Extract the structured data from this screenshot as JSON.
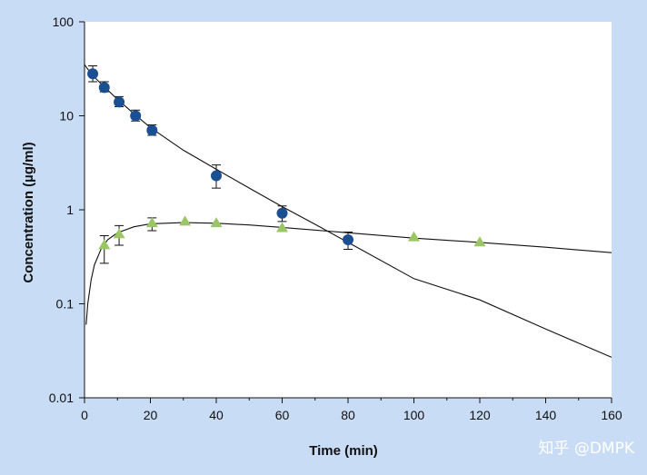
{
  "chart_data": {
    "type": "scatter",
    "xlabel": "Time (min)",
    "ylabel": "Concentration (µg/ml)",
    "xlim": [
      0,
      160
    ],
    "ylim": [
      0.01,
      100
    ],
    "yscale": "log",
    "grid": false,
    "x_ticks": [
      0,
      20,
      40,
      60,
      80,
      100,
      120,
      140,
      160
    ],
    "x_tick_labels": [
      "0",
      "20",
      "40",
      "60",
      "80",
      "100",
      "120",
      "140",
      "160"
    ],
    "y_ticks": [
      0.01,
      0.1,
      1,
      10,
      100
    ],
    "y_tick_labels": [
      "0.01",
      "0.1",
      "1",
      "10",
      "100"
    ],
    "series": [
      {
        "marker": "circle",
        "color": "#1b4f94",
        "x": [
          2.5,
          6,
          10.5,
          15.5,
          20.5,
          40,
          60,
          80
        ],
        "y": [
          28,
          20,
          14,
          10,
          7,
          2.3,
          0.92,
          0.48
        ],
        "err_low": [
          23,
          18,
          12.5,
          8.8,
          6.2,
          1.7,
          0.75,
          0.38
        ],
        "err_high": [
          34,
          23,
          16,
          11.5,
          8,
          3.0,
          1.1,
          0.58
        ]
      },
      {
        "marker": "triangle",
        "color": "#9bc666",
        "x": [
          6,
          10.5,
          20.5,
          30.5,
          40,
          60,
          100,
          120
        ],
        "y": [
          0.42,
          0.55,
          0.72,
          0.75,
          0.72,
          0.64,
          0.51,
          0.45
        ],
        "err_low": [
          0.27,
          0.42,
          0.6,
          null,
          null,
          null,
          null,
          null
        ],
        "err_high": [
          0.53,
          0.68,
          0.82,
          null,
          null,
          null,
          null,
          null
        ]
      }
    ],
    "fit_lines": [
      {
        "x": [
          0,
          2,
          5,
          10,
          15,
          20,
          30,
          40,
          50,
          60,
          70,
          80,
          100,
          120,
          140,
          160
        ],
        "y": [
          35,
          28,
          22,
          15,
          10.5,
          7.5,
          4.3,
          2.7,
          1.7,
          1.08,
          0.7,
          0.45,
          0.185,
          0.11,
          0.054,
          0.027
        ]
      },
      {
        "x": [
          0.5,
          1,
          2,
          3,
          5,
          7,
          10,
          15,
          20,
          30,
          40,
          50,
          60,
          80,
          100,
          120,
          140,
          160
        ],
        "y": [
          0.06,
          0.1,
          0.18,
          0.26,
          0.38,
          0.48,
          0.57,
          0.66,
          0.71,
          0.73,
          0.72,
          0.69,
          0.65,
          0.57,
          0.5,
          0.45,
          0.4,
          0.35
        ]
      }
    ]
  },
  "watermark": "知乎 @DMPK",
  "colors": {
    "background": "#c9dcf5",
    "plot_area": "#ffffff",
    "axis": "#111111"
  }
}
